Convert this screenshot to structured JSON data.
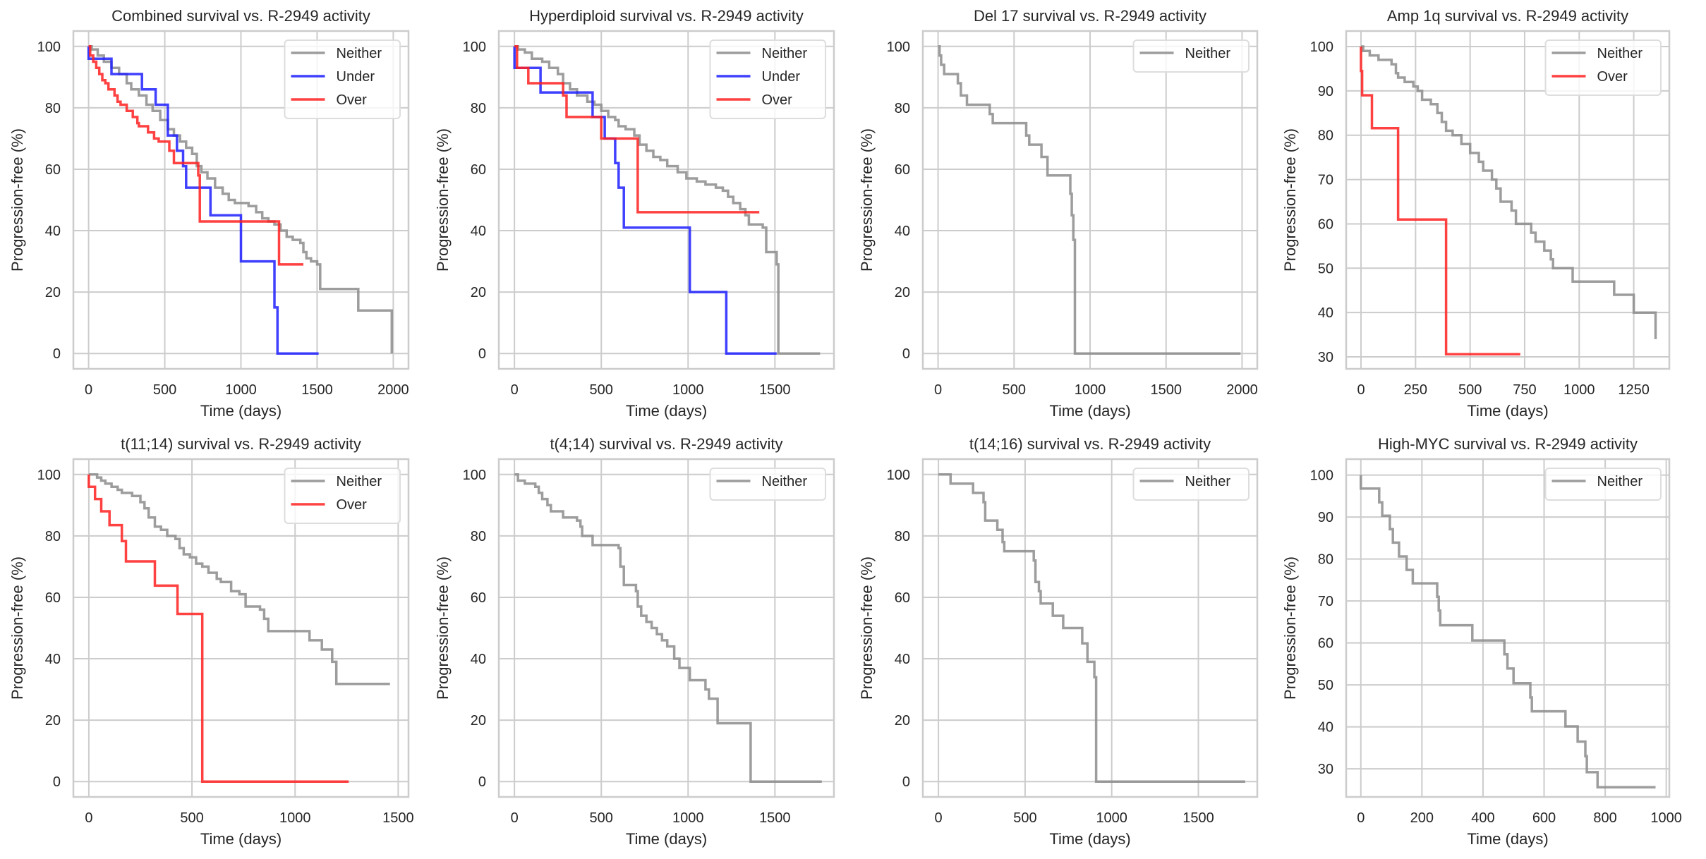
{
  "chart_data": [
    {
      "type": "line",
      "title": "Combined survival vs. R-2949 activity",
      "xlabel": "Time (days)",
      "ylabel": "Progression-free (%)",
      "xlim": [
        -100,
        2100
      ],
      "ylim": [
        -5,
        105
      ],
      "xticks": [
        0,
        500,
        1000,
        1500,
        2000
      ],
      "yticks": [
        0,
        20,
        40,
        60,
        80,
        100
      ],
      "grid": true,
      "legend": "top-right",
      "series": [
        {
          "name": "Neither",
          "color": "#8c8c8c",
          "x": [
            0,
            20,
            60,
            100,
            150,
            200,
            250,
            280,
            330,
            380,
            420,
            470,
            520,
            560,
            600,
            640,
            680,
            710,
            740,
            780,
            830,
            880,
            920,
            960,
            1000,
            1050,
            1100,
            1140,
            1180,
            1220,
            1260,
            1300,
            1340,
            1360,
            1390,
            1410,
            1430,
            1460,
            1500,
            1520,
            1760,
            1770,
            1990
          ],
          "y": [
            100,
            99,
            97,
            95,
            93,
            91,
            88,
            86,
            84,
            81,
            79,
            76,
            73,
            71,
            69,
            67,
            65,
            61,
            59,
            57,
            54,
            52,
            50,
            49,
            49,
            48,
            46,
            44,
            43,
            42,
            40,
            38,
            37,
            37,
            36,
            33,
            31,
            30,
            29,
            21,
            21,
            14,
            0
          ]
        },
        {
          "name": "Under",
          "color": "#1f1fff",
          "x": [
            0,
            150,
            350,
            440,
            520,
            580,
            620,
            640,
            800,
            1000,
            1220,
            1240,
            1510
          ],
          "y": [
            96,
            91,
            86,
            81,
            71,
            66,
            61,
            54,
            45,
            30,
            15,
            0,
            0
          ]
        },
        {
          "name": "Over",
          "color": "#ff2020",
          "x": [
            0,
            10,
            30,
            50,
            70,
            90,
            110,
            130,
            170,
            190,
            210,
            250,
            290,
            320,
            330,
            390,
            430,
            460,
            530,
            560,
            720,
            730,
            1250,
            1410
          ],
          "y": [
            100,
            97,
            95,
            93,
            91,
            89,
            88,
            86,
            84,
            82,
            81,
            79,
            77,
            75,
            74,
            72,
            70,
            69,
            66,
            62,
            58,
            43,
            29,
            29
          ]
        }
      ]
    },
    {
      "type": "line",
      "title": "Hyperdiploid survival vs. R-2949 activity",
      "xlabel": "Time (days)",
      "ylabel": "Progression-free (%)",
      "xlim": [
        -90,
        1840
      ],
      "ylim": [
        -5,
        105
      ],
      "xticks": [
        0,
        500,
        1000,
        1500
      ],
      "yticks": [
        0,
        20,
        40,
        60,
        80,
        100
      ],
      "grid": true,
      "legend": "top-right",
      "series": [
        {
          "name": "Neither",
          "color": "#8c8c8c",
          "x": [
            0,
            20,
            60,
            100,
            160,
            200,
            250,
            280,
            320,
            360,
            420,
            460,
            500,
            540,
            580,
            600,
            640,
            690,
            720,
            760,
            800,
            840,
            880,
            940,
            990,
            1050,
            1100,
            1160,
            1200,
            1230,
            1260,
            1300,
            1330,
            1350,
            1430,
            1450,
            1510,
            1520,
            1760
          ],
          "y": [
            100,
            99,
            98,
            96,
            95,
            93,
            91,
            88,
            86,
            84,
            82,
            81,
            79,
            77,
            76,
            74,
            73,
            71,
            68,
            66,
            64,
            63,
            61,
            59,
            57,
            56,
            55,
            54,
            53,
            51,
            49,
            47,
            45,
            42,
            41,
            33,
            29,
            0,
            0
          ]
        },
        {
          "name": "Under",
          "color": "#1f1fff",
          "x": [
            0,
            150,
            450,
            520,
            580,
            600,
            630,
            1010,
            1220,
            1510
          ],
          "y": [
            93,
            85,
            77,
            70,
            62,
            54,
            41,
            20,
            0,
            0
          ]
        },
        {
          "name": "Over",
          "color": "#ff2020",
          "x": [
            0,
            15,
            80,
            280,
            300,
            500,
            710,
            1410
          ],
          "y": [
            100,
            93,
            88,
            84,
            77,
            70,
            46,
            46
          ]
        }
      ]
    },
    {
      "type": "line",
      "title": "Del 17 survival vs. R-2949 activity",
      "xlabel": "Time (days)",
      "ylabel": "Progression-free (%)",
      "xlim": [
        -100,
        2100
      ],
      "ylim": [
        -5,
        105
      ],
      "xticks": [
        0,
        500,
        1000,
        1500,
        2000
      ],
      "yticks": [
        0,
        20,
        40,
        60,
        80,
        100
      ],
      "grid": true,
      "legend": "top-right",
      "series": [
        {
          "name": "Neither",
          "color": "#8c8c8c",
          "x": [
            0,
            10,
            20,
            40,
            130,
            150,
            190,
            340,
            360,
            580,
            600,
            680,
            720,
            870,
            880,
            890,
            900,
            910,
            1990
          ],
          "y": [
            100,
            97,
            94,
            91,
            88,
            84,
            81,
            78,
            75,
            71,
            68,
            64,
            58,
            52,
            45,
            37,
            0,
            0,
            0
          ]
        }
      ]
    },
    {
      "type": "line",
      "title": "Amp 1q survival vs. R-2949 activity",
      "xlabel": "Time (days)",
      "ylabel": "Progression-free (%)",
      "xlim": [
        -68,
        1413
      ],
      "ylim": [
        27.3,
        103.5
      ],
      "xticks": [
        0,
        250,
        500,
        750,
        1000,
        1250
      ],
      "yticks": [
        30,
        40,
        50,
        60,
        70,
        80,
        90,
        100
      ],
      "grid": true,
      "legend": "top-right",
      "series": [
        {
          "name": "Neither",
          "color": "#8c8c8c",
          "x": [
            0,
            10,
            40,
            80,
            140,
            160,
            170,
            200,
            240,
            260,
            280,
            320,
            350,
            370,
            390,
            420,
            460,
            500,
            540,
            560,
            600,
            620,
            640,
            690,
            710,
            780,
            800,
            840,
            870,
            880,
            970,
            1160,
            1250,
            1350
          ],
          "y": [
            100,
            99,
            98,
            97,
            96,
            94,
            93,
            92,
            91,
            90,
            88,
            87,
            85,
            83,
            81,
            80,
            78,
            76,
            74,
            72,
            70,
            68,
            65,
            63,
            60,
            58,
            56,
            54,
            52,
            50,
            47,
            44,
            40,
            34
          ]
        },
        {
          "name": "Over",
          "color": "#ff2020",
          "x": [
            0,
            5,
            50,
            170,
            390,
            730
          ],
          "y": [
            94.5,
            89,
            81.6,
            61,
            30.6,
            30.6
          ]
        }
      ]
    },
    {
      "type": "line",
      "title": "t(11;14) survival vs. R-2949 activity",
      "xlabel": "Time (days)",
      "ylabel": "Progression-free (%)",
      "xlim": [
        -75,
        1550
      ],
      "ylim": [
        -5,
        105
      ],
      "xticks": [
        0,
        500,
        1000,
        1500
      ],
      "yticks": [
        0,
        20,
        40,
        60,
        80,
        100
      ],
      "grid": true,
      "legend": "top-right",
      "series": [
        {
          "name": "Neither",
          "color": "#8c8c8c",
          "x": [
            0,
            40,
            60,
            80,
            110,
            140,
            160,
            210,
            250,
            270,
            290,
            320,
            350,
            380,
            420,
            440,
            460,
            490,
            520,
            550,
            580,
            620,
            640,
            690,
            730,
            760,
            830,
            850,
            870,
            1070,
            1130,
            1180,
            1200,
            1460
          ],
          "y": [
            100,
            99,
            98,
            97,
            96,
            95,
            94,
            93,
            91,
            89,
            86,
            83,
            82,
            80,
            79,
            76,
            74,
            73,
            71,
            70,
            68,
            66,
            65,
            62,
            61,
            57,
            56,
            53,
            49,
            46,
            43,
            39,
            31.8,
            31.8
          ]
        },
        {
          "name": "Over",
          "color": "#ff2020",
          "x": [
            0,
            30,
            60,
            100,
            160,
            180,
            320,
            430,
            550,
            1260
          ],
          "y": [
            96,
            92,
            88,
            83.5,
            78.3,
            71.7,
            63.8,
            54.6,
            0,
            0
          ]
        }
      ]
    },
    {
      "type": "line",
      "title": "t(4;14) survival vs. R-2949 activity",
      "xlabel": "Time (days)",
      "ylabel": "Progression-free (%)",
      "xlim": [
        -90,
        1840
      ],
      "ylim": [
        -5,
        105
      ],
      "xticks": [
        0,
        500,
        1000,
        1500
      ],
      "yticks": [
        0,
        20,
        40,
        60,
        80,
        100
      ],
      "grid": true,
      "legend": "top-right",
      "series": [
        {
          "name": "Neither",
          "color": "#8c8c8c",
          "x": [
            0,
            20,
            60,
            120,
            140,
            160,
            190,
            210,
            280,
            360,
            380,
            390,
            450,
            600,
            610,
            630,
            700,
            710,
            730,
            760,
            790,
            820,
            850,
            880,
            920,
            950,
            1010,
            1100,
            1120,
            1170,
            1350,
            1360,
            1770
          ],
          "y": [
            100,
            98,
            97,
            96,
            94,
            92,
            90,
            88,
            86,
            85,
            83,
            80,
            77,
            76,
            70,
            64,
            62,
            57,
            54,
            52,
            50,
            48,
            46,
            44,
            40,
            37,
            33,
            30,
            27,
            19,
            19,
            0,
            0
          ]
        }
      ]
    },
    {
      "type": "line",
      "title": "t(14;16) survival vs. R-2949 activity",
      "xlabel": "Time (days)",
      "ylabel": "Progression-free (%)",
      "xlim": [
        -90,
        1840
      ],
      "ylim": [
        -5,
        105
      ],
      "xticks": [
        0,
        500,
        1000,
        1500
      ],
      "yticks": [
        0,
        20,
        40,
        60,
        80,
        100
      ],
      "grid": true,
      "legend": "top-right",
      "series": [
        {
          "name": "Neither",
          "color": "#8c8c8c",
          "x": [
            0,
            70,
            200,
            260,
            270,
            340,
            370,
            380,
            550,
            560,
            580,
            590,
            660,
            720,
            830,
            860,
            900,
            910,
            1770
          ],
          "y": [
            100,
            97,
            94,
            91,
            85,
            82,
            78,
            75,
            72,
            65,
            62,
            58,
            54,
            50,
            45,
            39,
            34,
            0,
            0
          ]
        }
      ]
    },
    {
      "type": "line",
      "title": "High-MYC survival vs. R-2949 activity",
      "xlabel": "Time (days)",
      "ylabel": "Progression-free (%)",
      "xlim": [
        -48,
        1010
      ],
      "ylim": [
        23.3,
        103.8
      ],
      "xticks": [
        0,
        200,
        400,
        600,
        800,
        1000
      ],
      "yticks": [
        30,
        40,
        50,
        60,
        70,
        80,
        90,
        100
      ],
      "grid": true,
      "legend": "top-right",
      "series": [
        {
          "name": "Neither",
          "color": "#8c8c8c",
          "x": [
            0,
            60,
            70,
            95,
            105,
            125,
            150,
            170,
            250,
            255,
            260,
            365,
            470,
            480,
            500,
            555,
            560,
            670,
            710,
            735,
            740,
            775,
            965
          ],
          "y": [
            96.8,
            93.5,
            90.3,
            87.1,
            83.9,
            80.6,
            77.4,
            74.2,
            71,
            67.7,
            64.2,
            60.6,
            57.3,
            53.9,
            50.4,
            47,
            43.7,
            40.1,
            36.5,
            33,
            29.2,
            25.6,
            25.6
          ]
        }
      ]
    }
  ]
}
